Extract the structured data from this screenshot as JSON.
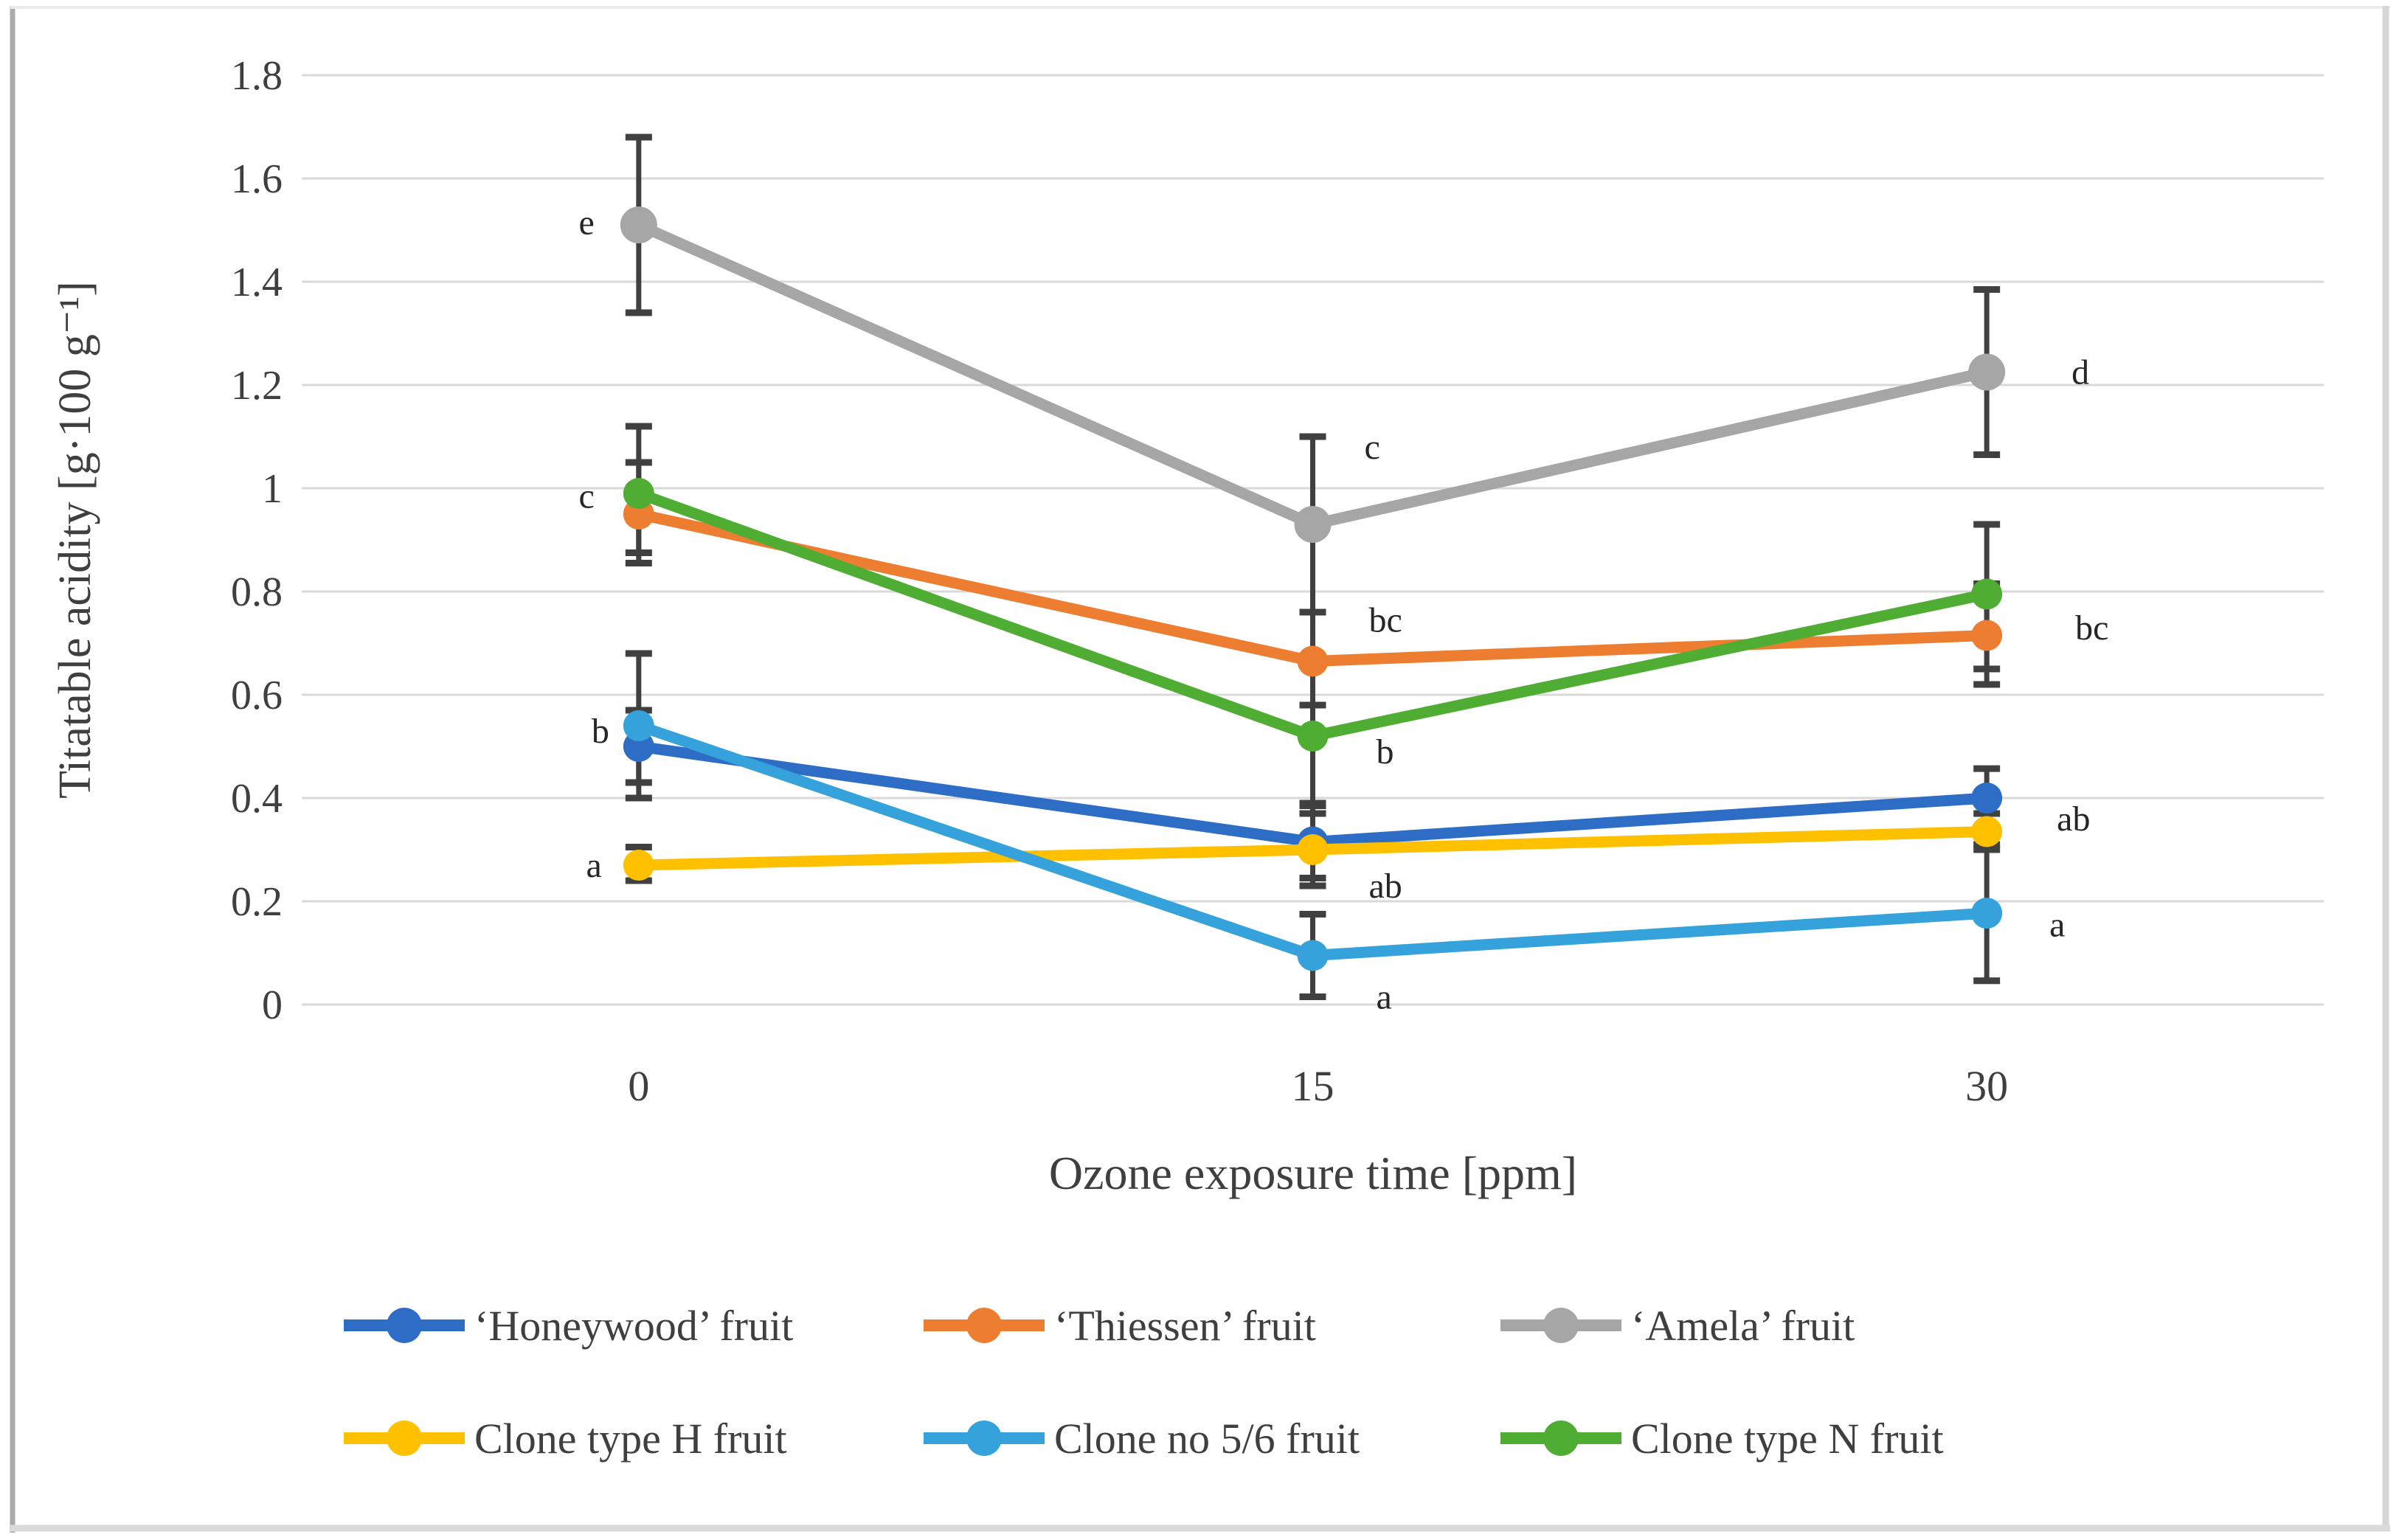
{
  "figure": {
    "background": "#FFFFFF",
    "border_colors": {
      "left": "#ABABAB",
      "top": "#EBEBEB",
      "right": "#D6D6D6",
      "bottom": "#DADADA"
    }
  },
  "colors": {
    "grid": "#D9D9D9",
    "error_bar": "#404040",
    "axis_text": "#3F3F3F",
    "annotation_text": "#262626"
  },
  "chart_data": {
    "type": "line",
    "title": "",
    "xlabel": "Ozone exposure time [ppm]",
    "ylabel": "Titatable acidity [g·100 g⁻¹]",
    "grid": true,
    "legend_position": "bottom",
    "ylim": [
      0,
      1.8
    ],
    "yticks": {
      "values": [
        0,
        0.2,
        0.4,
        0.6,
        0.8,
        1.0,
        1.2,
        1.4,
        1.6,
        1.8
      ],
      "labels": [
        "0",
        "0.2",
        "0.4",
        "0.6",
        "0.8",
        "1",
        "1.2",
        "1.4",
        "1.6",
        "1.8"
      ]
    },
    "categories": [
      "0",
      "15",
      "30"
    ],
    "series": [
      {
        "name": "‘Honeywood’ fruit",
        "color": "#2E6DC5",
        "values": [
          0.5,
          0.315,
          0.4
        ],
        "err_low": [
          0.43,
          0.245,
          0.335
        ],
        "err_high": [
          0.57,
          0.385,
          0.457
        ]
      },
      {
        "name": "‘Thiessen’ fruit",
        "color": "#ED7D31",
        "values": [
          0.95,
          0.665,
          0.715
        ],
        "err_low": [
          0.855,
          0.58,
          0.62
        ],
        "err_high": [
          1.05,
          0.76,
          0.815
        ]
      },
      {
        "name": "‘Amela’ fruit",
        "color": "#A6A6A6",
        "values": [
          1.51,
          0.93,
          1.225
        ],
        "err_low": [
          1.34,
          0.76,
          1.065
        ],
        "err_high": [
          1.68,
          1.1,
          1.385
        ]
      },
      {
        "name": "Clone type H fruit",
        "color": "#FFC000",
        "values": [
          0.27,
          0.3,
          0.335
        ],
        "err_low": [
          0.24,
          0.23,
          0.3
        ],
        "err_high": [
          0.305,
          0.37,
          0.37
        ]
      },
      {
        "name": "Clone no 5/6 fruit",
        "color": "#35A2DC",
        "values": [
          0.54,
          0.095,
          0.177
        ],
        "err_low": [
          0.4,
          0.015,
          0.046
        ],
        "err_high": [
          0.68,
          0.175,
          0.31
        ]
      },
      {
        "name": "Clone type N fruit",
        "color": "#4FAD33",
        "values": [
          0.99,
          0.52,
          0.795
        ],
        "err_low": [
          0.875,
          0.39,
          0.65
        ],
        "err_high": [
          1.12,
          0.58,
          0.93
        ]
      }
    ],
    "annotations": [
      {
        "text": "e",
        "cat": 0,
        "value": 1.515,
        "anchor": "end",
        "dx": -60
      },
      {
        "text": "c",
        "cat": 0,
        "value": 0.985,
        "anchor": "end",
        "dx": -60
      },
      {
        "text": "b",
        "cat": 0,
        "value": 0.53,
        "anchor": "end",
        "dx": -40
      },
      {
        "text": "a",
        "cat": 0,
        "value": 0.27,
        "anchor": "end",
        "dx": -50
      },
      {
        "text": "c",
        "cat": 1,
        "value": 1.08,
        "anchor": "start",
        "dx": 70
      },
      {
        "text": "bc",
        "cat": 1,
        "value": 0.745,
        "anchor": "start",
        "dx": 76
      },
      {
        "text": "b",
        "cat": 1,
        "value": 0.49,
        "anchor": "start",
        "dx": 86
      },
      {
        "text": "ab",
        "cat": 1,
        "value": 0.23,
        "anchor": "start",
        "dx": 76
      },
      {
        "text": "a",
        "cat": 1,
        "value": 0.015,
        "anchor": "start",
        "dx": 86
      },
      {
        "text": "d",
        "cat": 2,
        "value": 1.225,
        "anchor": "start",
        "dx": 115
      },
      {
        "text": "bc",
        "cat": 2,
        "value": 0.73,
        "anchor": "start",
        "dx": 120
      },
      {
        "text": "ab",
        "cat": 2,
        "value": 0.36,
        "anchor": "start",
        "dx": 95
      },
      {
        "text": "a",
        "cat": 2,
        "value": 0.155,
        "anchor": "start",
        "dx": 85
      }
    ],
    "legend_rows": [
      [
        0,
        1,
        2
      ],
      [
        3,
        4,
        5
      ]
    ]
  }
}
